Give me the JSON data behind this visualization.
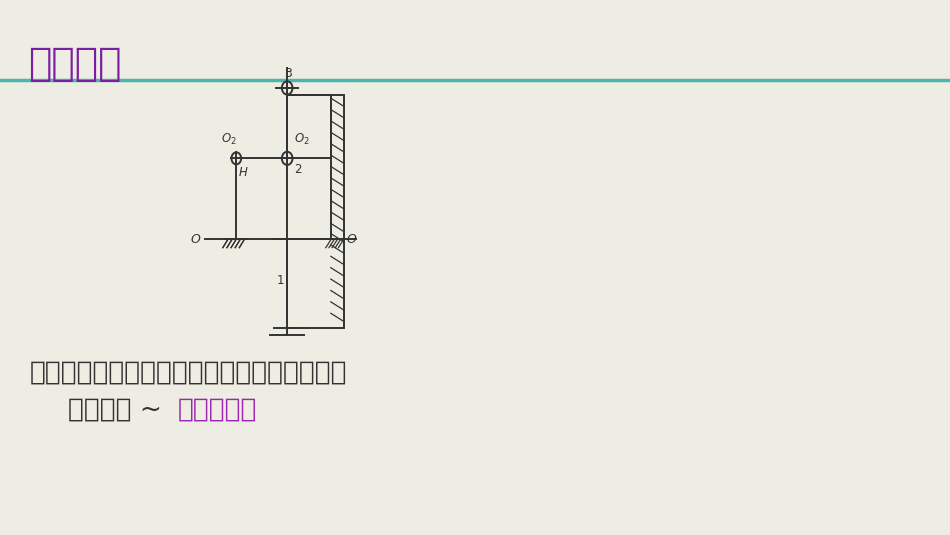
{
  "bg_color": "#eeede3",
  "title": "周转轮系",
  "title_color": "#7b1fa2",
  "title_fontsize": 28,
  "separator_color": "#4db6ac",
  "line_color": "#333333",
  "text_color": "#333333",
  "body_text1": "定义：轮系运转时，至少有一个齿轮的轴线位",
  "body_text2": "置不固定 ~ ",
  "body_text2_highlight": "周转轮系。",
  "body_fontsize": 19,
  "highlight_color": "#9c27b0"
}
